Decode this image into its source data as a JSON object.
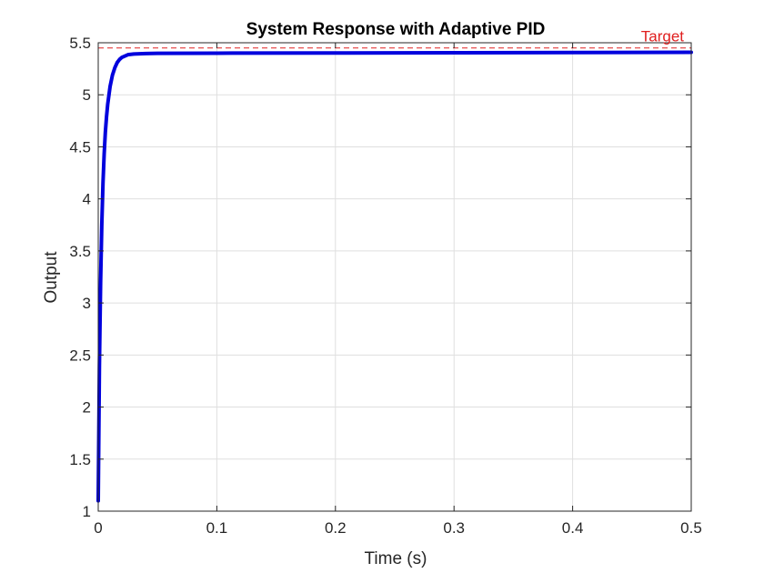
{
  "chart_data": {
    "type": "line",
    "title": "System Response with Adaptive PID",
    "xlabel": "Time (s)",
    "ylabel": "Output",
    "xlim": [
      0,
      0.5
    ],
    "ylim": [
      1,
      5.5
    ],
    "xticks": [
      0,
      0.1,
      0.2,
      0.3,
      0.4,
      0.5
    ],
    "xtick_labels": [
      "0",
      "0.1",
      "0.2",
      "0.3",
      "0.4",
      "0.5"
    ],
    "yticks": [
      1,
      1.5,
      2,
      2.5,
      3,
      3.5,
      4,
      4.5,
      5,
      5.5
    ],
    "ytick_labels": [
      "1",
      "1.5",
      "2",
      "2.5",
      "3",
      "3.5",
      "4",
      "4.5",
      "5",
      "5.5"
    ],
    "grid": true,
    "series": [
      {
        "x": [
          0,
          0.001,
          0.002,
          0.003,
          0.004,
          0.005,
          0.006,
          0.007,
          0.008,
          0.01,
          0.012,
          0.014,
          0.016,
          0.018,
          0.02,
          0.025,
          0.03,
          0.04,
          0.05,
          0.1,
          0.2,
          0.3,
          0.4,
          0.5
        ],
        "y": [
          1.1,
          2.4,
          3.2,
          3.75,
          4.15,
          4.43,
          4.64,
          4.79,
          4.91,
          5.08,
          5.19,
          5.26,
          5.31,
          5.34,
          5.36,
          5.385,
          5.392,
          5.396,
          5.398,
          5.4,
          5.402,
          5.404,
          5.406,
          5.408
        ],
        "color": "#0000dd"
      }
    ],
    "reference_line": {
      "label": "Target",
      "y": 5.45,
      "color": "#e02020",
      "style": "dashed"
    }
  }
}
